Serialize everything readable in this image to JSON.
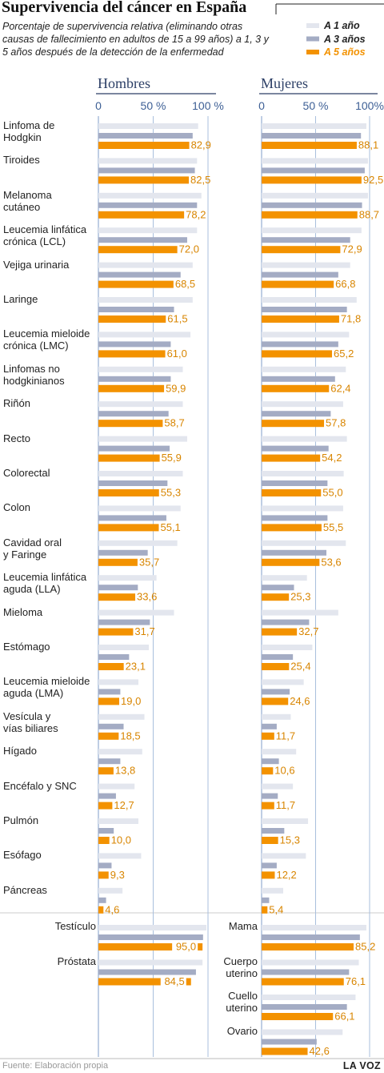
{
  "chart_data": {
    "type": "bar",
    "title": "Supervivencia del cáncer en España",
    "subtitle": "Porcentaje de supervivencia relativa (eliminando otras causas de fallecimiento en adultos de 15 a 99 años) a 1, 3 y 5 años después de la detección de la enfermedad",
    "source": "Fuente: Elaboración propia",
    "brand": "LA VOZ",
    "series": [
      {
        "name": "A 1 año",
        "color": "#e3e6ee"
      },
      {
        "name": "A 3 años",
        "color": "#a4acc4"
      },
      {
        "name": "A 5 años",
        "color": "#f39200"
      }
    ],
    "categories": [
      "Linfoma de\nHodgkin",
      "Tiroides",
      "Melanoma\ncutáneo",
      "Leucemia linfática\ncrónica (LCL)",
      "Vejiga urinaria",
      "Laringe",
      "Leucemia mieloide\ncrónica (LMC)",
      "Linfomas no\nhodgkinianos",
      "Riñón",
      "Recto",
      "Colorectal",
      "Colon",
      "Cavidad oral\ny Faringe",
      "Leucemia linfática\naguda (LLA)",
      "Mieloma",
      "Estómago",
      "Leucemia mieloide\naguda (LMA)",
      "Vesícula y\nvías biliares",
      "Hígado",
      "Encéfalo y SNC",
      "Pulmón",
      "Esófago",
      "Páncreas"
    ],
    "panels": [
      {
        "title": "Hombres",
        "xlim": [
          0,
          100
        ],
        "xticks": [
          0,
          {
            "value": 50,
            "label": "50 %"
          },
          {
            "value": 100,
            "label": "100 %"
          }
        ],
        "series": [
          {
            "values": [
              91,
              90,
              94,
              90,
              86,
              86,
              84,
              77,
              77,
              81,
              77,
              75,
              72,
              53,
              69,
              46,
              36.5,
              42,
              40,
              33,
              36.5,
              39,
              22
            ]
          },
          {
            "values": [
              86,
              88,
              90,
              81,
              75,
              69,
              66,
              66,
              64,
              65,
              63,
              62,
              45,
              36,
              47,
              28,
              20,
              23,
              20,
              16,
              14,
              12,
              7
            ]
          },
          {
            "values": [
              82.9,
              82.5,
              78.2,
              72.0,
              68.5,
              61.5,
              61.0,
              59.9,
              58.7,
              55.9,
              55.3,
              55.1,
              35.7,
              33.6,
              31.7,
              23.1,
              19.0,
              18.5,
              13.8,
              12.7,
              10.0,
              9.3,
              4.6
            ],
            "value_labels": [
              "82,9",
              "82,5",
              "78,2",
              "72,0",
              "68,5",
              "61,5",
              "61,0",
              "59,9",
              "58,7",
              "55,9",
              "55,3",
              "55,1",
              "35,7",
              "33,6",
              "31,7",
              "23,1",
              "19,0",
              "18,5",
              "13,8",
              "12,7",
              "10,0",
              "9,3",
              "4,6"
            ]
          }
        ],
        "specific": {
          "categories": [
            "Testículo",
            "Próstata"
          ],
          "series": [
            {
              "values": [
                98.5,
                95
              ]
            },
            {
              "values": [
                95.5,
                89
              ]
            },
            {
              "values": [
                95.0,
                84.5
              ],
              "value_labels": [
                "95,0",
                "84,5"
              ]
            }
          ]
        }
      },
      {
        "title": "Mujeres",
        "xlim": [
          0,
          100
        ],
        "xticks": [
          0,
          {
            "value": 50,
            "label": "50 %"
          },
          {
            "value": 100,
            "label": "100%"
          }
        ],
        "series": [
          {
            "values": [
              97,
              98.5,
              98.5,
              92.5,
              82,
              88,
              81,
              78,
              75.5,
              79,
              76,
              75.5,
              78,
              42,
              71,
              47,
              39,
              27,
              32,
              29,
              43,
              41,
              20
            ]
          },
          {
            "values": [
              92,
              95.5,
              93,
              82,
              71,
              79,
              71,
              68,
              64,
              62,
              61,
              61,
              60,
              30,
              44,
              29,
              26,
              14,
              16,
              15,
              21,
              14,
              7
            ]
          },
          {
            "values": [
              88.1,
              92.5,
              88.7,
              72.9,
              66.8,
              71.8,
              65.2,
              62.4,
              57.8,
              54.2,
              55.0,
              55.5,
              53.6,
              25.3,
              32.7,
              25.4,
              24.6,
              11.7,
              10.6,
              11.7,
              15.3,
              12.2,
              5.4
            ],
            "value_labels": [
              "88,1",
              "92,5",
              "88,7",
              "72,9",
              "66,8",
              "71,8",
              "65,2",
              "62,4",
              "57,8",
              "54,2",
              "55,0",
              "55,5",
              "53,6",
              "25,3",
              "32,7",
              "25,4",
              "24,6",
              "11,7",
              "10,6",
              "11,7",
              "15,3",
              "12,2",
              "5,4"
            ]
          }
        ],
        "specific": {
          "categories": [
            "Mama",
            "Cuerpo\nuterino",
            "Cuello\nuterino",
            "Ovario"
          ],
          "series": [
            {
              "values": [
                97,
                90,
                87,
                75
              ]
            },
            {
              "values": [
                91,
                81,
                79,
                51
              ]
            },
            {
              "values": [
                85.2,
                76.1,
                66.1,
                42.6
              ],
              "value_labels": [
                "85,2",
                "76,1",
                "66,1",
                "42,6"
              ]
            }
          ]
        }
      }
    ]
  }
}
